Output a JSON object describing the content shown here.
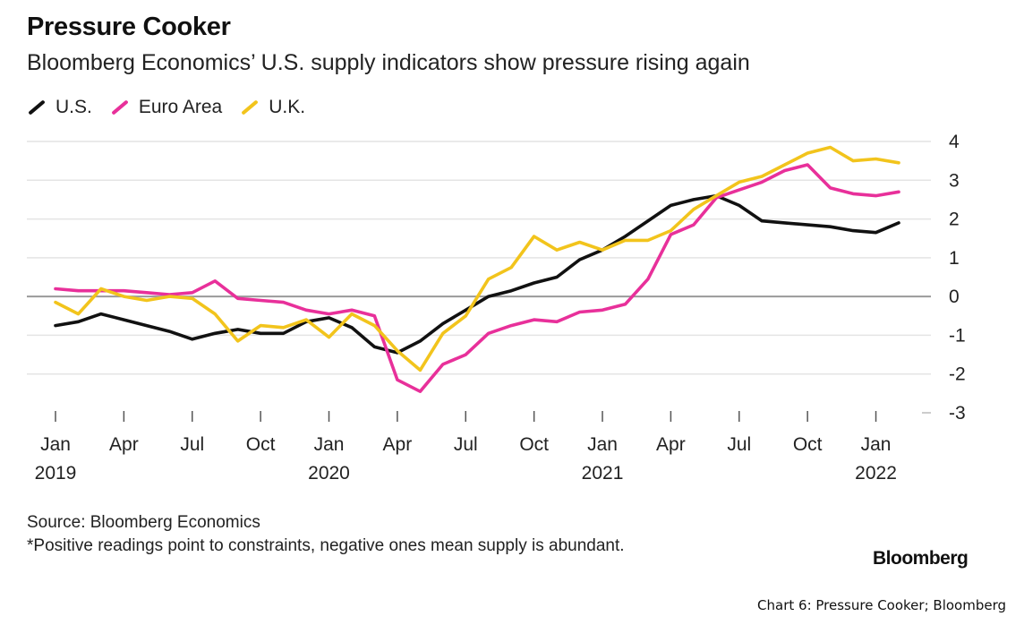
{
  "title": "Pressure Cooker",
  "subtitle": "Bloomberg Economics’ U.S. supply indicators show pressure rising again",
  "source": "Source: Bloomberg Economics",
  "note": "*Positive readings point to constraints, negative ones mean supply is abundant.",
  "brand": "Bloomberg",
  "caption": "Chart 6: Pressure Cooker; Bloomberg",
  "chart_data": {
    "type": "line",
    "x_tick_labels": [
      {
        "month": "Jan",
        "year": "2019",
        "index": 0
      },
      {
        "month": "Apr",
        "year": "",
        "index": 3
      },
      {
        "month": "Jul",
        "year": "",
        "index": 6
      },
      {
        "month": "Oct",
        "year": "",
        "index": 9
      },
      {
        "month": "Jan",
        "year": "2020",
        "index": 12
      },
      {
        "month": "Apr",
        "year": "",
        "index": 15
      },
      {
        "month": "Jul",
        "year": "",
        "index": 18
      },
      {
        "month": "Oct",
        "year": "",
        "index": 21
      },
      {
        "month": "Jan",
        "year": "2021",
        "index": 24
      },
      {
        "month": "Apr",
        "year": "",
        "index": 27
      },
      {
        "month": "Jul",
        "year": "",
        "index": 30
      },
      {
        "month": "Oct",
        "year": "",
        "index": 33
      },
      {
        "month": "Jan",
        "year": "2022",
        "index": 36
      }
    ],
    "x": [
      "2019-01",
      "2019-02",
      "2019-03",
      "2019-04",
      "2019-05",
      "2019-06",
      "2019-07",
      "2019-08",
      "2019-09",
      "2019-10",
      "2019-11",
      "2019-12",
      "2020-01",
      "2020-02",
      "2020-03",
      "2020-04",
      "2020-05",
      "2020-06",
      "2020-07",
      "2020-08",
      "2020-09",
      "2020-10",
      "2020-11",
      "2020-12",
      "2021-01",
      "2021-02",
      "2021-03",
      "2021-04",
      "2021-05",
      "2021-06",
      "2021-07",
      "2021-08",
      "2021-09",
      "2021-10",
      "2021-11",
      "2021-12",
      "2022-01",
      "2022-02"
    ],
    "ylim": [
      -3,
      4
    ],
    "yticks": [
      4,
      3,
      2,
      1,
      0,
      -1,
      -2,
      -3
    ],
    "y_axis_position": "right",
    "grid": true,
    "legend_position": "top-left",
    "series": [
      {
        "name": "U.S.",
        "color": "#111111",
        "values": [
          -0.75,
          -0.65,
          -0.45,
          -0.6,
          -0.75,
          -0.9,
          -1.1,
          -0.95,
          -0.85,
          -0.95,
          -0.95,
          -0.65,
          -0.55,
          -0.8,
          -1.3,
          -1.45,
          -1.15,
          -0.7,
          -0.35,
          0.0,
          0.15,
          0.35,
          0.5,
          0.95,
          1.2,
          1.55,
          1.95,
          2.35,
          2.5,
          2.6,
          2.35,
          1.95,
          1.9,
          1.85,
          1.8,
          1.7,
          1.65,
          1.9
        ]
      },
      {
        "name": "Euro Area",
        "color": "#e8309a",
        "values": [
          0.2,
          0.15,
          0.15,
          0.15,
          0.1,
          0.05,
          0.1,
          0.4,
          -0.05,
          -0.1,
          -0.15,
          -0.35,
          -0.45,
          -0.35,
          -0.5,
          -2.15,
          -2.45,
          -1.75,
          -1.5,
          -0.95,
          -0.75,
          -0.6,
          -0.65,
          -0.4,
          -0.35,
          -0.2,
          0.45,
          1.6,
          1.85,
          2.55,
          2.75,
          2.95,
          3.25,
          3.4,
          2.8,
          2.65,
          2.6,
          2.7
        ]
      },
      {
        "name": "U.K.",
        "color": "#f2c41c",
        "values": [
          -0.15,
          -0.45,
          0.2,
          0.0,
          -0.1,
          0.0,
          -0.05,
          -0.45,
          -1.15,
          -0.75,
          -0.8,
          -0.6,
          -1.05,
          -0.45,
          -0.75,
          -1.4,
          -1.9,
          -0.95,
          -0.5,
          0.45,
          0.75,
          1.55,
          1.2,
          1.4,
          1.2,
          1.45,
          1.45,
          1.7,
          2.25,
          2.6,
          2.95,
          3.1,
          3.4,
          3.7,
          3.85,
          3.5,
          3.55,
          3.45
        ]
      }
    ]
  }
}
